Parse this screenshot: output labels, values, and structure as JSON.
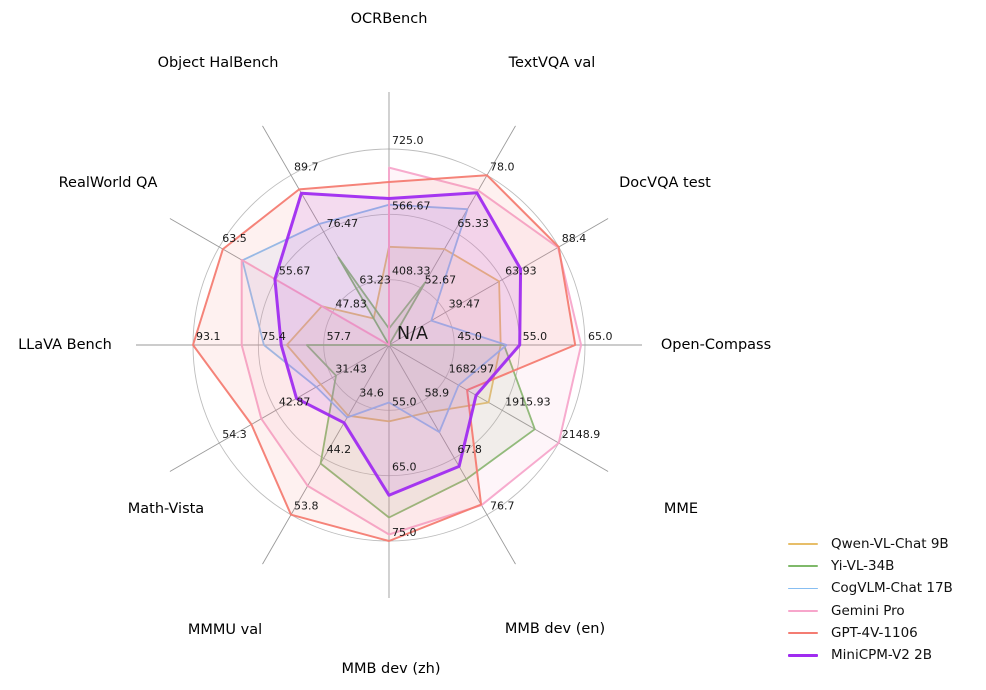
{
  "chart_data": {
    "type": "radar",
    "title": "",
    "center_label": "N/A",
    "grid": {
      "rings": 3,
      "ring_color": "#bdbdbd",
      "spoke_color": "#9a9a9a",
      "tick_color": "#1a1a1a",
      "axis_label_color": "#000000"
    },
    "legend_position": "bottom-right",
    "axes": [
      {
        "label": "OCRBench",
        "min": 250,
        "max": 725,
        "ticks": [
          "408.33",
          "566.67",
          "725.0"
        ]
      },
      {
        "label": "TextVQA val",
        "min": 40,
        "max": 78,
        "ticks": [
          "52.67",
          "65.33",
          "78.0"
        ]
      },
      {
        "label": "DocVQA test",
        "min": 15,
        "max": 88.4,
        "ticks": [
          "39.47",
          "63.93",
          "88.4"
        ]
      },
      {
        "label": "Open-Compass",
        "min": 35,
        "max": 65,
        "ticks": [
          "45.0",
          "55.0",
          "65.0"
        ]
      },
      {
        "label": "MME",
        "min": 1450,
        "max": 2148.9,
        "ticks": [
          "1682.97",
          "1915.93",
          "2148.9"
        ]
      },
      {
        "label": "MMB dev (en)",
        "min": 50,
        "max": 76.7,
        "ticks": [
          "58.9",
          "67.8",
          "76.7"
        ]
      },
      {
        "label": "MMB dev (zh)",
        "min": 45,
        "max": 75,
        "ticks": [
          "55.0",
          "65.0",
          "75.0"
        ]
      },
      {
        "label": "MMMU val",
        "min": 25,
        "max": 53.8,
        "ticks": [
          "34.6",
          "44.2",
          "53.8"
        ]
      },
      {
        "label": "Math-Vista",
        "min": 20,
        "max": 54.3,
        "ticks": [
          "31.43",
          "42.87",
          "54.3"
        ]
      },
      {
        "label": "LLaVA Bench",
        "min": 40,
        "max": 93.1,
        "ticks": [
          "57.7",
          "75.4",
          "93.1"
        ]
      },
      {
        "label": "RealWorld QA",
        "min": 40,
        "max": 63.5,
        "ticks": [
          "47.83",
          "55.67",
          "63.5"
        ]
      },
      {
        "label": "Object HalBench",
        "min": 50,
        "max": 89.7,
        "ticks": [
          "63.23",
          "76.47",
          "89.7"
        ]
      }
    ],
    "series": [
      {
        "name": "Qwen-VL-Chat 9B",
        "color": "#E7BE69",
        "stroke_width": 1.8,
        "values": [
          488,
          61.5,
          62.6,
          52.1,
          1860.0,
          60.6,
          56.7,
          37.0,
          33.8,
          67.7,
          49.3,
          56.2
        ]
      },
      {
        "name": "Yi-VL-34B",
        "color": "#7FB96A",
        "stroke_width": 1.8,
        "values": [
          290,
          54.0,
          null,
          52.6,
          2050.2,
          71.1,
          71.4,
          45.1,
          30.7,
          62.3,
          null,
          70.5
        ]
      },
      {
        "name": "CogVLM-Chat 17B",
        "color": "#87BEF2",
        "stroke_width": 1.8,
        "values": [
          590,
          70.4,
          33.3,
          53.0,
          1736.6,
          63.7,
          53.8,
          37.3,
          34.7,
          73.9,
          60.3,
          78.3
        ]
      },
      {
        "name": "Gemini Pro",
        "color": "#F7A6CB",
        "stroke_width": 2.0,
        "values": [
          680,
          74.6,
          88.1,
          64.4,
          2148.9,
          75.2,
          74.0,
          48.9,
          45.8,
          79.9,
          60.4,
          null
        ]
      },
      {
        "name": "GPT-4V-1106",
        "color": "#F47C72",
        "stroke_width": 2.0,
        "values": [
          645,
          78.0,
          88.4,
          63.5,
          1771.5,
          75.1,
          75.0,
          53.8,
          47.8,
          93.1,
          63.0,
          86.4
        ]
      },
      {
        "name": "MiniCPM-V2 2B",
        "color": "#A02CF0",
        "stroke_width": 3.0,
        "values": [
          605,
          74.1,
          71.9,
          55.0,
          1808.6,
          69.1,
          68.0,
          38.2,
          38.7,
          69.2,
          55.8,
          85.5
        ]
      }
    ]
  }
}
